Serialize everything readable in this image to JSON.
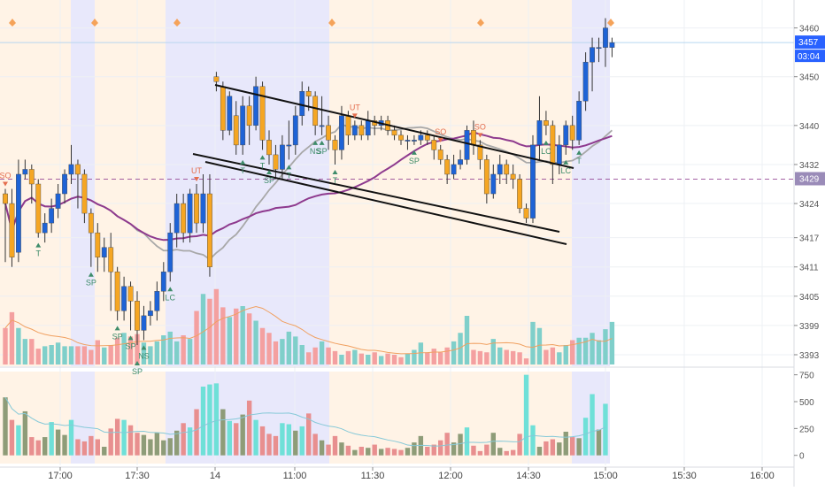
{
  "chart_data": {
    "type": "candlestick",
    "price_axis": {
      "labels": [
        "3460",
        "3450",
        "3440",
        "3432",
        "3424",
        "3417",
        "3411",
        "3405",
        "3399",
        "3393"
      ],
      "ylim": [
        3391,
        3465
      ]
    },
    "time_axis": {
      "labels": [
        "17:00",
        "17:30",
        "14",
        "11:00",
        "11:30",
        "12:00",
        "14:30",
        "15:00",
        "15:30",
        "16:00"
      ]
    },
    "current_price": {
      "value": 3457,
      "label": "3457",
      "countdown": "03:04",
      "color": "#2962ff"
    },
    "reference_line": {
      "value": 3429,
      "label": "3429",
      "color": "#7e57c2"
    },
    "colors": {
      "up": "#1e63d6",
      "down": "#f5a623",
      "vol_up": "#7fcfca",
      "vol_down": "#f4a0a0",
      "ma_slow": "#8e3a8e",
      "ma_fast": "#a8a8a8",
      "osc_up": "#6fe0d8",
      "osc_down": "#e88f8f",
      "osc_neutral": "#8e9c78",
      "osc_line": "#86c9d8",
      "session_blue": "#e8e8fb",
      "session_peach": "#fff3e6",
      "annotation_green": "#3e8c6a",
      "annotation_red": "#e46e4e"
    },
    "candles": [
      [
        3426,
        3424,
        3427,
        3412
      ],
      [
        3424,
        3413,
        3427,
        3411
      ],
      [
        3414,
        3430,
        3433,
        3412
      ],
      [
        3430,
        3431,
        3433,
        3429
      ],
      [
        3431,
        3428,
        3432,
        3424
      ],
      [
        3428,
        3418,
        3429,
        3417
      ],
      [
        3418,
        3420,
        3422,
        3416
      ],
      [
        3420,
        3423,
        3425,
        3418
      ],
      [
        3423,
        3426,
        3428,
        3421
      ],
      [
        3426,
        3430,
        3431,
        3424
      ],
      [
        3430,
        3432,
        3436,
        3428
      ],
      [
        3432,
        3430,
        3433,
        3423
      ],
      [
        3430,
        3422,
        3431,
        3420
      ],
      [
        3422,
        3418,
        3423,
        3411
      ],
      [
        3418,
        3413,
        3420,
        3410
      ],
      [
        3413,
        3415,
        3417,
        3410
      ],
      [
        3415,
        3410,
        3418,
        3402
      ],
      [
        3410,
        3402,
        3411,
        3400
      ],
      [
        3402,
        3407,
        3409,
        3400
      ],
      [
        3407,
        3404,
        3408,
        3398
      ],
      [
        3404,
        3398,
        3406,
        3395
      ],
      [
        3398,
        3401,
        3403,
        3396
      ],
      [
        3401,
        3402,
        3404,
        3399
      ],
      [
        3402,
        3406,
        3408,
        3400
      ],
      [
        3406,
        3410,
        3412,
        3404
      ],
      [
        3410,
        3418,
        3420,
        3408
      ],
      [
        3418,
        3424,
        3426,
        3415
      ],
      [
        3424,
        3418,
        3426,
        3416
      ],
      [
        3418,
        3426,
        3427,
        3416
      ],
      [
        3426,
        3420,
        3428,
        3418
      ],
      [
        3420,
        3426,
        3430,
        3418
      ],
      [
        3426,
        3411,
        3430,
        3409
      ],
      [
        3450,
        3449,
        3451,
        3447
      ],
      [
        3448,
        3439,
        3449,
        3437
      ],
      [
        3439,
        3446,
        3447,
        3438
      ],
      [
        3442,
        3436,
        3445,
        3434
      ],
      [
        3436,
        3444,
        3446,
        3434
      ],
      [
        3444,
        3440,
        3446,
        3436
      ],
      [
        3440,
        3448,
        3450,
        3439
      ],
      [
        3448,
        3437,
        3449,
        3435
      ],
      [
        3437,
        3434,
        3439,
        3432
      ],
      [
        3434,
        3431,
        3436,
        3429
      ],
      [
        3431,
        3436,
        3438,
        3429
      ],
      [
        3436,
        3436,
        3441,
        3433
      ],
      [
        3436,
        3442,
        3444,
        3434
      ],
      [
        3442,
        3447,
        3449,
        3440
      ],
      [
        3447,
        3446,
        3448,
        3443
      ],
      [
        3446,
        3440,
        3447,
        3438
      ],
      [
        3440,
        3440,
        3446,
        3438
      ],
      [
        3440,
        3437,
        3442,
        3435
      ],
      [
        3437,
        3435,
        3438,
        3432
      ],
      [
        3435,
        3442,
        3444,
        3433
      ],
      [
        3442,
        3438,
        3443,
        3436
      ],
      [
        3438,
        3440,
        3441,
        3437
      ],
      [
        3440,
        3438,
        3441,
        3437
      ],
      [
        3438,
        3441,
        3443,
        3437
      ],
      [
        3441,
        3440,
        3442,
        3438
      ],
      [
        3440,
        3441,
        3442,
        3439
      ],
      [
        3441,
        3439,
        3442,
        3438
      ],
      [
        3439,
        3438,
        3440,
        3437
      ],
      [
        3438,
        3437,
        3439,
        3436
      ],
      [
        3437,
        3437,
        3438,
        3435
      ],
      [
        3437,
        3437,
        3438,
        3436
      ],
      [
        3437,
        3438,
        3439,
        3436
      ],
      [
        3438,
        3437,
        3439,
        3436
      ],
      [
        3437,
        3435,
        3438,
        3433
      ],
      [
        3435,
        3433,
        3436,
        3432
      ],
      [
        3433,
        3430,
        3434,
        3428
      ],
      [
        3430,
        3432,
        3434,
        3429
      ],
      [
        3432,
        3433,
        3435,
        3431
      ],
      [
        3433,
        3439,
        3440,
        3432
      ],
      [
        3439,
        3436,
        3441,
        3434
      ],
      [
        3436,
        3433,
        3437,
        3431
      ],
      [
        3433,
        3426,
        3434,
        3424
      ],
      [
        3426,
        3430,
        3432,
        3425
      ],
      [
        3430,
        3432,
        3434,
        3428
      ],
      [
        3432,
        3430,
        3433,
        3428
      ],
      [
        3430,
        3429,
        3432,
        3427
      ],
      [
        3429,
        3423,
        3430,
        3422
      ],
      [
        3423,
        3421,
        3424,
        3420
      ],
      [
        3421,
        3436,
        3438,
        3420
      ],
      [
        3436,
        3441,
        3446,
        3433
      ],
      [
        3441,
        3440,
        3443,
        3438
      ],
      [
        3440,
        3432,
        3441,
        3428
      ],
      [
        3432,
        3436,
        3438,
        3430
      ],
      [
        3436,
        3440,
        3441,
        3434
      ],
      [
        3440,
        3437,
        3442,
        3435
      ],
      [
        3437,
        3445,
        3447,
        3436
      ],
      [
        3445,
        3453,
        3455,
        3443
      ],
      [
        3453,
        3456,
        3458,
        3447
      ],
      [
        3456,
        3456,
        3458,
        3453
      ],
      [
        3456,
        3460,
        3462,
        3452
      ],
      [
        3456,
        3457,
        3458,
        3454
      ]
    ],
    "volume": [
      30,
      43,
      30,
      21,
      21,
      13,
      15,
      16,
      18,
      15,
      15,
      15,
      15,
      12,
      20,
      14,
      16,
      22,
      26,
      23,
      25,
      18,
      15,
      19,
      24,
      27,
      19,
      24,
      21,
      44,
      58,
      54,
      62,
      47,
      39,
      46,
      48,
      42,
      36,
      30,
      26,
      19,
      21,
      27,
      23,
      16,
      10,
      14,
      19,
      14,
      11,
      8,
      11,
      12,
      9,
      8,
      10,
      7,
      9,
      8,
      6,
      9,
      12,
      18,
      10,
      13,
      10,
      14,
      19,
      26,
      40,
      12,
      11,
      10,
      21,
      14,
      12,
      11,
      10,
      5,
      35,
      30,
      12,
      14,
      10,
      16,
      20,
      22,
      22,
      26,
      20,
      29,
      35
    ],
    "oscillator": {
      "axis_labels": [
        "750",
        "500",
        "250",
        "0"
      ],
      "ylim": [
        -60,
        780
      ],
      "values": [
        540,
        330,
        280,
        410,
        170,
        140,
        170,
        310,
        240,
        190,
        330,
        150,
        130,
        180,
        150,
        80,
        250,
        340,
        330,
        280,
        210,
        190,
        150,
        210,
        140,
        160,
        230,
        300,
        260,
        430,
        640,
        660,
        670,
        430,
        320,
        300,
        380,
        510,
        330,
        270,
        200,
        180,
        300,
        290,
        230,
        270,
        390,
        200,
        140,
        100,
        180,
        120,
        90,
        50,
        80,
        70,
        100,
        60,
        70,
        60,
        50,
        70,
        120,
        180,
        80,
        100,
        140,
        210,
        120,
        200,
        260,
        90,
        40,
        100,
        210,
        70,
        40,
        50,
        200,
        750,
        280,
        80,
        130,
        150,
        120,
        220,
        170,
        160,
        350,
        570,
        240,
        480
      ]
    },
    "annotations": [
      {
        "label": "SO",
        "i": 0,
        "pos": "above",
        "kind": "down"
      },
      {
        "label": "T",
        "i": 5,
        "pos": "below",
        "kind": "up"
      },
      {
        "label": "SP",
        "i": 13,
        "pos": "below",
        "kind": "up"
      },
      {
        "label": "SP",
        "i": 17,
        "pos": "below",
        "kind": "up"
      },
      {
        "label": "SP",
        "i": 19,
        "pos": "below",
        "kind": "up"
      },
      {
        "label": "NS",
        "i": 21,
        "pos": "below",
        "kind": "up"
      },
      {
        "label": "SP",
        "i": 20,
        "pos": "below2",
        "kind": "up"
      },
      {
        "label": "LC",
        "i": 25,
        "pos": "below",
        "kind": "up"
      },
      {
        "label": "UT",
        "i": 29,
        "pos": "above",
        "kind": "down"
      },
      {
        "label": "T",
        "i": 36,
        "pos": "below",
        "kind": "up"
      },
      {
        "label": "T",
        "i": 39,
        "pos": "below",
        "kind": "up"
      },
      {
        "label": "SP",
        "i": 40,
        "pos": "below",
        "kind": "up"
      },
      {
        "label": "T",
        "i": 43,
        "pos": "below",
        "kind": "up"
      },
      {
        "label": "NS",
        "i": 47,
        "pos": "below",
        "kind": "up"
      },
      {
        "label": "SP",
        "i": 48,
        "pos": "below",
        "kind": "up"
      },
      {
        "label": "T",
        "i": 50,
        "pos": "below",
        "kind": "up"
      },
      {
        "label": "UT",
        "i": 53,
        "pos": "above",
        "kind": "down"
      },
      {
        "label": "SP",
        "i": 62,
        "pos": "below",
        "kind": "up"
      },
      {
        "label": "SO",
        "i": 66,
        "pos": "above",
        "kind": "down"
      },
      {
        "label": "SO",
        "i": 72,
        "pos": "above",
        "kind": "down"
      },
      {
        "label": "LC",
        "i": 82,
        "pos": "below",
        "kind": "up"
      },
      {
        "label": "LC",
        "i": 85,
        "pos": "below",
        "kind": "up"
      },
      {
        "label": "T",
        "i": 87,
        "pos": "below",
        "kind": "up"
      }
    ]
  }
}
